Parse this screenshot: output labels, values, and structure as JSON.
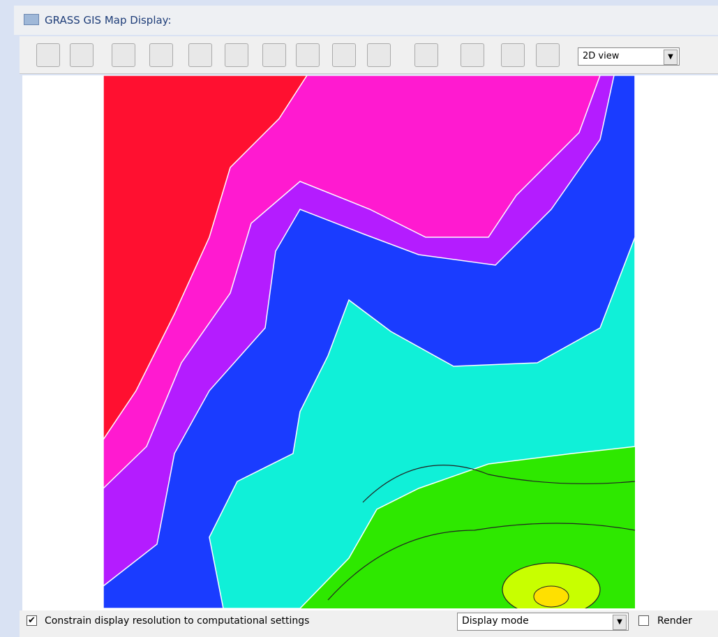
{
  "window": {
    "title": "GRASS GIS Map Display:"
  },
  "toolbar": {
    "view_select": "2D view"
  },
  "statusbar": {
    "constrain_label": "Constrain display resolution to computational settings",
    "mode_select": "Display mode",
    "render_label": "Render"
  }
}
